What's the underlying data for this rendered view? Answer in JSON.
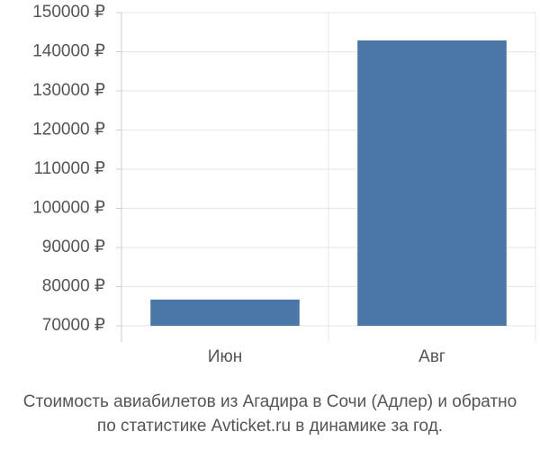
{
  "chart_data": {
    "type": "bar",
    "title_lines": [
      "Стоимость авиабилетов из Агадира в Сочи (Адлер) и обратно",
      "по статистике Avticket.ru в динамике за год."
    ],
    "categories": [
      "Июн",
      "Авг"
    ],
    "values": [
      76700,
      142900
    ],
    "color": "#4a77a8",
    "ylim": [
      70000,
      150000
    ],
    "yticks": [
      {
        "value": 70000,
        "label": "70000 ₽"
      },
      {
        "value": 80000,
        "label": "80000 ₽"
      },
      {
        "value": 90000,
        "label": "90000 ₽"
      },
      {
        "value": 100000,
        "label": "100000 ₽"
      },
      {
        "value": 110000,
        "label": "110000 ₽"
      },
      {
        "value": 120000,
        "label": "120000 ₽"
      },
      {
        "value": 130000,
        "label": "130000 ₽"
      },
      {
        "value": 140000,
        "label": "140000 ₽"
      },
      {
        "value": 150000,
        "label": "150000 ₽"
      }
    ],
    "grid": true
  }
}
